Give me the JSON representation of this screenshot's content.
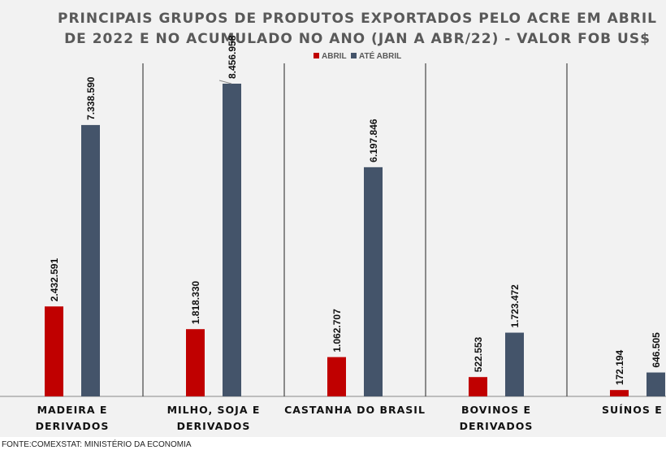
{
  "chart_data": {
    "type": "bar",
    "title": [
      "PRINCIPAIS GRUPOS DE PRODUTOS EXPORTADOS PELO ACRE EM ABRIL",
      "DE 2022 E NO ACUMULADO NO ANO (JAN A ABR/22) - VALOR FOB US$"
    ],
    "categories": [
      [
        "MADEIRA E",
        "DERIVADOS"
      ],
      [
        "MILHO, SOJA E",
        "DERIVADOS"
      ],
      [
        "CASTANHA DO BRASIL"
      ],
      [
        "BOVINOS E",
        "DERIVADOS"
      ],
      [
        "SUÍNOS E DERIV"
      ]
    ],
    "series": [
      {
        "name": "ABRIL",
        "color": "#c00000",
        "values": [
          2432591,
          1818330,
          1062707,
          522553,
          172194
        ],
        "labels": [
          "2.432.591",
          "1.818.330",
          "1.062.707",
          "522.553",
          "172.194"
        ]
      },
      {
        "name": "ATÉ ABRIL",
        "color": "#44546a",
        "values": [
          7338590,
          8456958,
          6197846,
          1723472,
          646505
        ],
        "labels": [
          "7.338.590",
          "8.456.958",
          "6.197.846",
          "1.723.472",
          "646.505"
        ]
      }
    ],
    "ylim": [
      0,
      9000000
    ],
    "legend": "top-center",
    "xlabel": "",
    "ylabel": ""
  },
  "source": "FONTE:COMEXSTAT: MINISTÉRIO DA ECONOMIA"
}
